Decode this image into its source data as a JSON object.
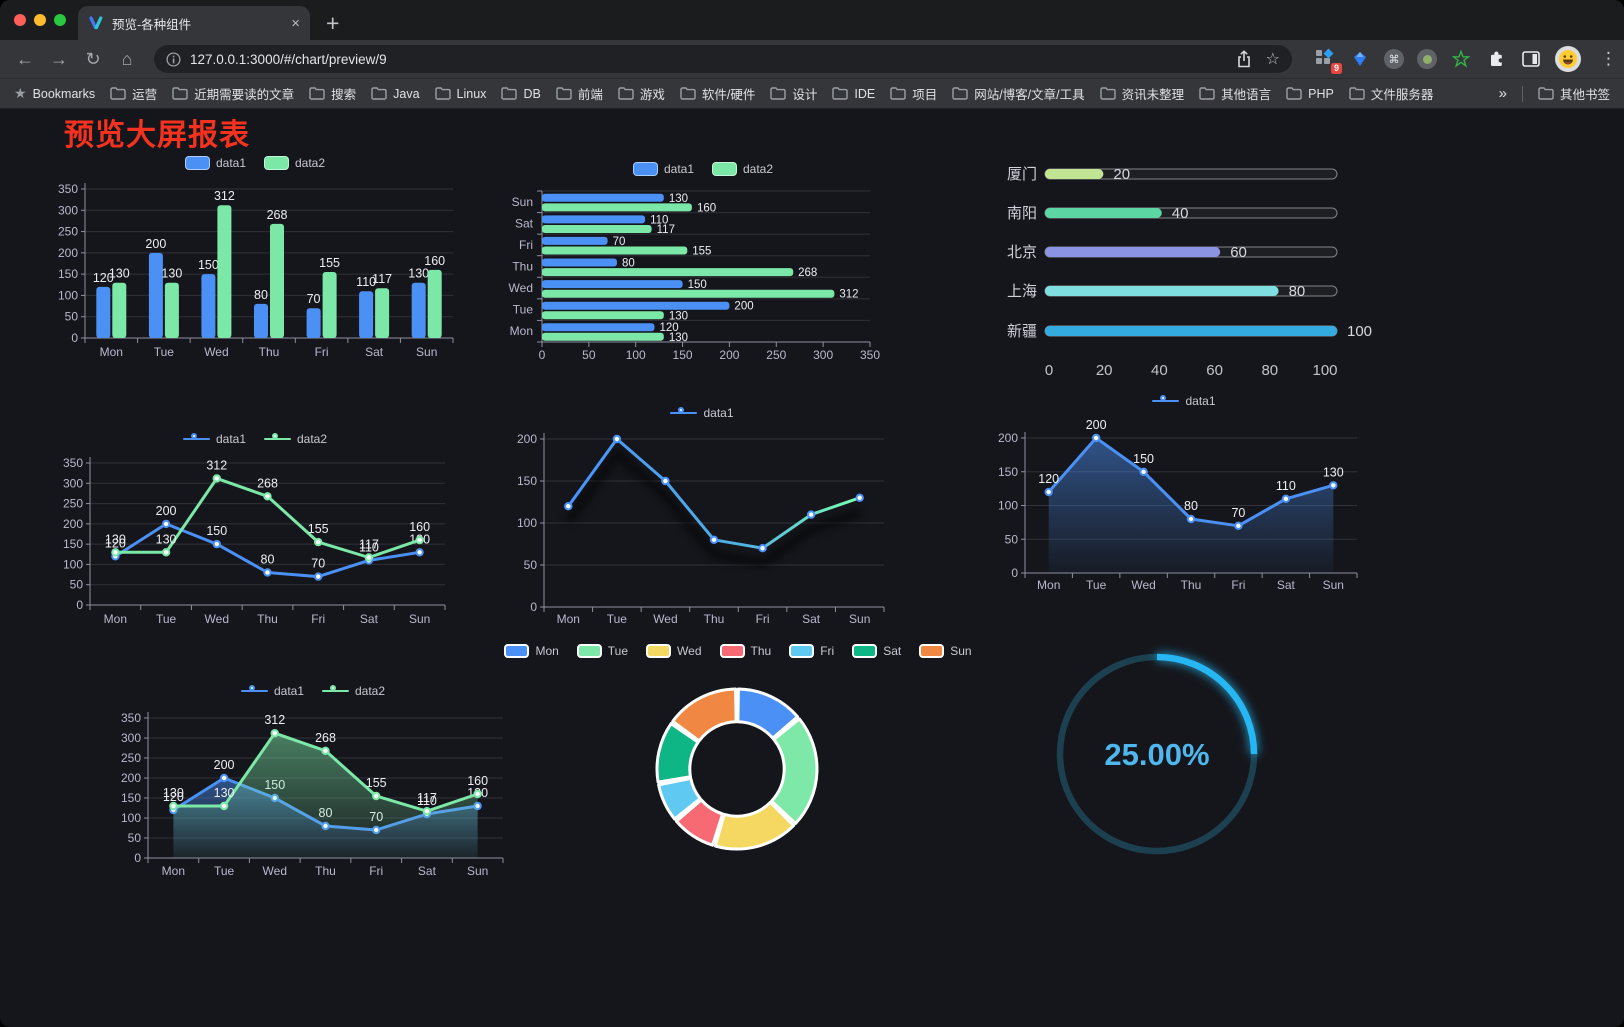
{
  "browser": {
    "tab": {
      "title": "预览-各种组件",
      "close_glyph": "×",
      "new_tab_glyph": "+"
    },
    "url": "127.0.0.1:3000/#/chart/preview/9",
    "icons": {
      "back": "←",
      "forward": "→",
      "reload": "↻",
      "home": "⌂",
      "star": "☆",
      "menu": "⋮",
      "bookmarks_star": "★",
      "command": "⌘"
    },
    "extensions_badge": "9",
    "bookmarks_bar": {
      "label": "Bookmarks",
      "folders": [
        "运营",
        "近期需要读的文章",
        "搜索",
        "Java",
        "Linux",
        "DB",
        "前端",
        "游戏",
        "软件/硬件",
        "设计",
        "IDE",
        "项目",
        "网站/博客/文章/工具",
        "资讯未整理",
        "其他语言",
        "PHP",
        "文件服务器"
      ],
      "overflow_glyph": "»",
      "other_bookmarks": "其他书签"
    }
  },
  "page": {
    "title": "预览大屏报表"
  },
  "theme": {
    "background": "#15161b",
    "title_color": "#f5321f",
    "axis_label": "#b9b8ce",
    "grid_line": "#303139",
    "axis_line": "#8f90a0",
    "value_label": "#eceef2",
    "legend_text": "#c8c8d2"
  },
  "chart_data": [
    {
      "id": "bar-grouped-vertical",
      "type": "bar",
      "categories": [
        "Mon",
        "Tue",
        "Wed",
        "Thu",
        "Fri",
        "Sat",
        "Sun"
      ],
      "series": [
        {
          "name": "data1",
          "color": "#4b90f5",
          "values": [
            120,
            200,
            150,
            80,
            70,
            110,
            130
          ]
        },
        {
          "name": "data2",
          "color": "#7ce8a8",
          "values": [
            130,
            130,
            312,
            268,
            155,
            117,
            160
          ]
        }
      ],
      "ylim": [
        0,
        350
      ],
      "yticks": [
        0,
        50,
        100,
        150,
        200,
        250,
        300,
        350
      ],
      "legend_position": "top",
      "value_labels": true
    },
    {
      "id": "bar-grouped-horizontal",
      "type": "bar",
      "orientation": "horizontal",
      "categories": [
        "Mon",
        "Tue",
        "Wed",
        "Thu",
        "Fri",
        "Sat",
        "Sun"
      ],
      "display_order_top_to_bottom": [
        "Sun",
        "Sat",
        "Fri",
        "Thu",
        "Wed",
        "Tue",
        "Mon"
      ],
      "series": [
        {
          "name": "data1",
          "color": "#4b90f5",
          "values": [
            120,
            200,
            150,
            80,
            70,
            110,
            130
          ]
        },
        {
          "name": "data2",
          "color": "#7ce8a8",
          "values": [
            130,
            130,
            312,
            268,
            155,
            117,
            160
          ]
        }
      ],
      "xlim": [
        0,
        350
      ],
      "xticks": [
        0,
        50,
        100,
        150,
        200,
        250,
        300,
        350
      ],
      "legend_position": "top",
      "value_labels": true
    },
    {
      "id": "progress-bars",
      "type": "bar",
      "subtype": "progress",
      "categories": [
        "厦门",
        "南阳",
        "北京",
        "上海",
        "新疆"
      ],
      "values": [
        20,
        40,
        60,
        80,
        100
      ],
      "bar_colors": [
        "#c2e593",
        "#5cd6a2",
        "#8b93e3",
        "#7fdfe0",
        "#34abe0"
      ],
      "xlim": [
        0,
        100
      ],
      "xticks": [
        0,
        20,
        40,
        60,
        80,
        100
      ]
    },
    {
      "id": "line-dual",
      "type": "line",
      "categories": [
        "Mon",
        "Tue",
        "Wed",
        "Thu",
        "Fri",
        "Sat",
        "Sun"
      ],
      "series": [
        {
          "name": "data1",
          "color": "#4b90f5",
          "values": [
            120,
            200,
            150,
            80,
            70,
            110,
            130
          ]
        },
        {
          "name": "data2",
          "color": "#7ce8a8",
          "values": [
            130,
            130,
            312,
            268,
            155,
            117,
            160
          ]
        }
      ],
      "ylim": [
        0,
        350
      ],
      "yticks": [
        0,
        50,
        100,
        150,
        200,
        250,
        300,
        350
      ],
      "legend_position": "top",
      "value_labels": true
    },
    {
      "id": "line-gradient",
      "type": "line",
      "categories": [
        "Mon",
        "Tue",
        "Wed",
        "Thu",
        "Fri",
        "Sat",
        "Sun"
      ],
      "series": [
        {
          "name": "data1",
          "color": "#4992ff",
          "color_gradient": [
            "#4992ff",
            "#7cffb2"
          ],
          "values": [
            120,
            200,
            150,
            80,
            70,
            110,
            130
          ]
        }
      ],
      "ylim": [
        0,
        200
      ],
      "yticks": [
        0,
        50,
        100,
        150,
        200
      ],
      "legend_position": "top",
      "value_labels": false,
      "shadow": true
    },
    {
      "id": "line-area-single",
      "type": "area",
      "categories": [
        "Mon",
        "Tue",
        "Wed",
        "Thu",
        "Fri",
        "Sat",
        "Sun"
      ],
      "series": [
        {
          "name": "data1",
          "color": "#4b90f5",
          "values": [
            120,
            200,
            150,
            80,
            70,
            110,
            130
          ]
        }
      ],
      "ylim": [
        0,
        200
      ],
      "yticks": [
        0,
        50,
        100,
        150,
        200
      ],
      "legend_position": "top",
      "value_labels": true
    },
    {
      "id": "line-area-dual",
      "type": "area",
      "categories": [
        "Mon",
        "Tue",
        "Wed",
        "Thu",
        "Fri",
        "Sat",
        "Sun"
      ],
      "series": [
        {
          "name": "data1",
          "color": "#4b90f5",
          "values": [
            120,
            200,
            150,
            80,
            70,
            110,
            130
          ]
        },
        {
          "name": "data2",
          "color": "#7ce8a8",
          "values": [
            130,
            130,
            312,
            268,
            155,
            117,
            160
          ]
        }
      ],
      "ylim": [
        0,
        350
      ],
      "yticks": [
        0,
        50,
        100,
        150,
        200,
        250,
        300,
        350
      ],
      "legend_position": "top",
      "value_labels": true
    },
    {
      "id": "donut",
      "type": "pie",
      "categories": [
        "Mon",
        "Tue",
        "Wed",
        "Thu",
        "Fri",
        "Sat",
        "Sun"
      ],
      "values": [
        120,
        200,
        150,
        80,
        70,
        110,
        130
      ],
      "colors": [
        "#4b90f5",
        "#7de8a8",
        "#f5d862",
        "#f76a74",
        "#5fc9f2",
        "#0eb585",
        "#f08742"
      ],
      "inner_radius_ratio": 0.59,
      "legend_position": "top"
    },
    {
      "id": "gauge-progress",
      "type": "gauge",
      "value": 25,
      "max": 100,
      "label": "25.00%",
      "color": "#27b6f3",
      "track_color": "#1c4050",
      "text_color": "#4db7ee"
    }
  ]
}
